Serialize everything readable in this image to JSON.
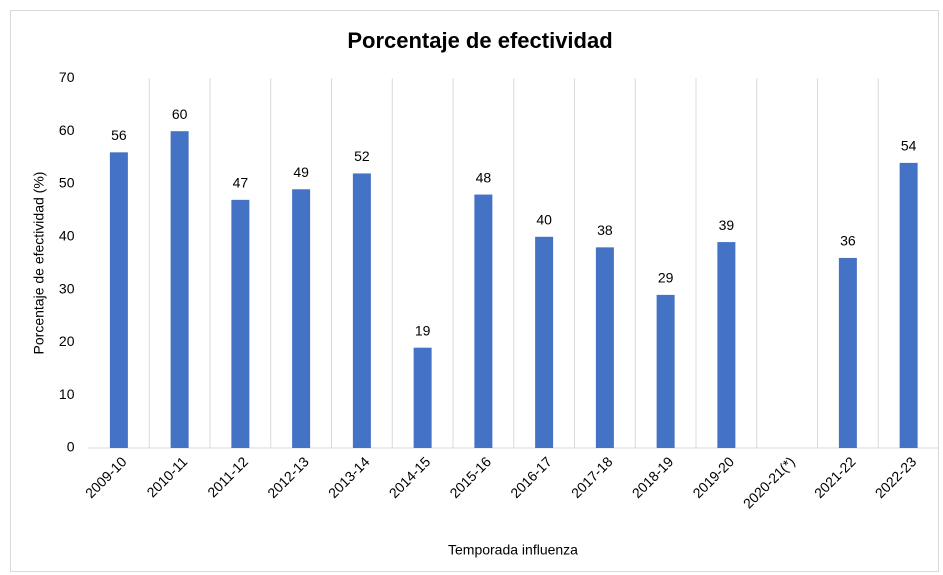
{
  "chart_data": {
    "type": "bar",
    "title": "Porcentaje de efectividad",
    "x_label": "Temporada influenza",
    "y_label": "Porcentaje de efectividad (%)",
    "categories": [
      "2009-10",
      "2010-11",
      "2011-12",
      "2012-13",
      "2013-14",
      "2014-15",
      "2015-16",
      "2016-17",
      "2017-18",
      "2018-19",
      "2019-20",
      "2020-21(*)",
      "2021-22",
      "2022-23"
    ],
    "values": [
      56,
      60,
      47,
      49,
      52,
      19,
      48,
      40,
      38,
      29,
      39,
      null,
      36,
      54
    ],
    "color": "#4472c4",
    "ylim": [
      0,
      70
    ],
    "yticks": [
      0,
      10,
      20,
      30,
      40,
      50,
      60,
      70
    ],
    "data_labels": true
  }
}
